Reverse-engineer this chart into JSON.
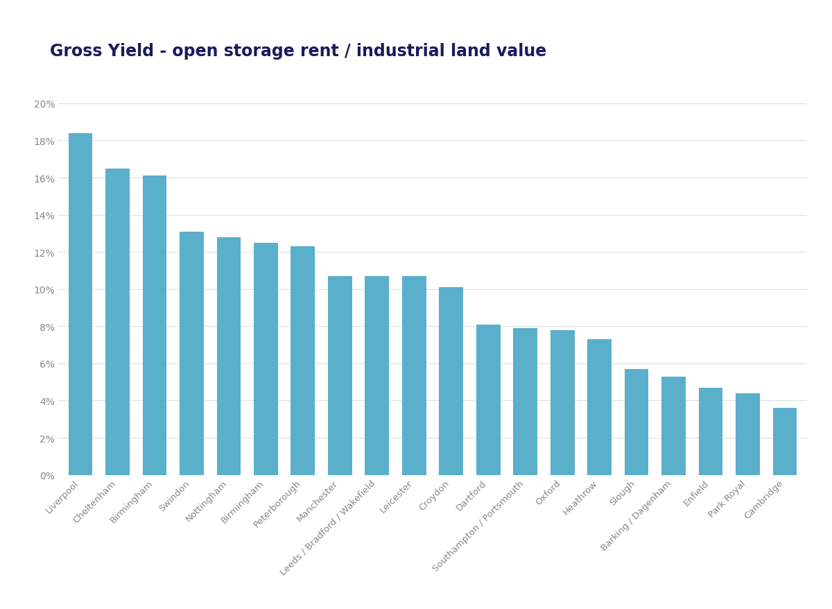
{
  "title": "Gross Yield - open storage rent / industrial land value",
  "categories": [
    "Liverpool",
    "Cheltenham",
    "Birmingham",
    "Swindon",
    "Nottingham",
    "Birmingham",
    "Peterborough",
    "Manchester",
    "Leeds / Bradford / Wakefield",
    "Leicester",
    "Croydon",
    "Dartford",
    "Southampton / Portsmouth",
    "Oxford",
    "Heathrow",
    "Slough",
    "Barking / Dagenham",
    "Enfield",
    "Park Royal",
    "Cambridge"
  ],
  "values": [
    0.184,
    0.165,
    0.161,
    0.131,
    0.128,
    0.125,
    0.123,
    0.107,
    0.107,
    0.107,
    0.101,
    0.081,
    0.079,
    0.078,
    0.073,
    0.057,
    0.053,
    0.047,
    0.044,
    0.036
  ],
  "bar_color": "#5aafcb",
  "background_color": "#ffffff",
  "title_color": "#1a1a5e",
  "title_fontsize": 17,
  "tick_label_color": "#888888",
  "grid_color": "#e0e0e0",
  "ylim": [
    0,
    0.21
  ],
  "yticks": [
    0,
    0.02,
    0.04,
    0.06,
    0.08,
    0.1,
    0.12,
    0.14,
    0.16,
    0.18,
    0.2
  ]
}
